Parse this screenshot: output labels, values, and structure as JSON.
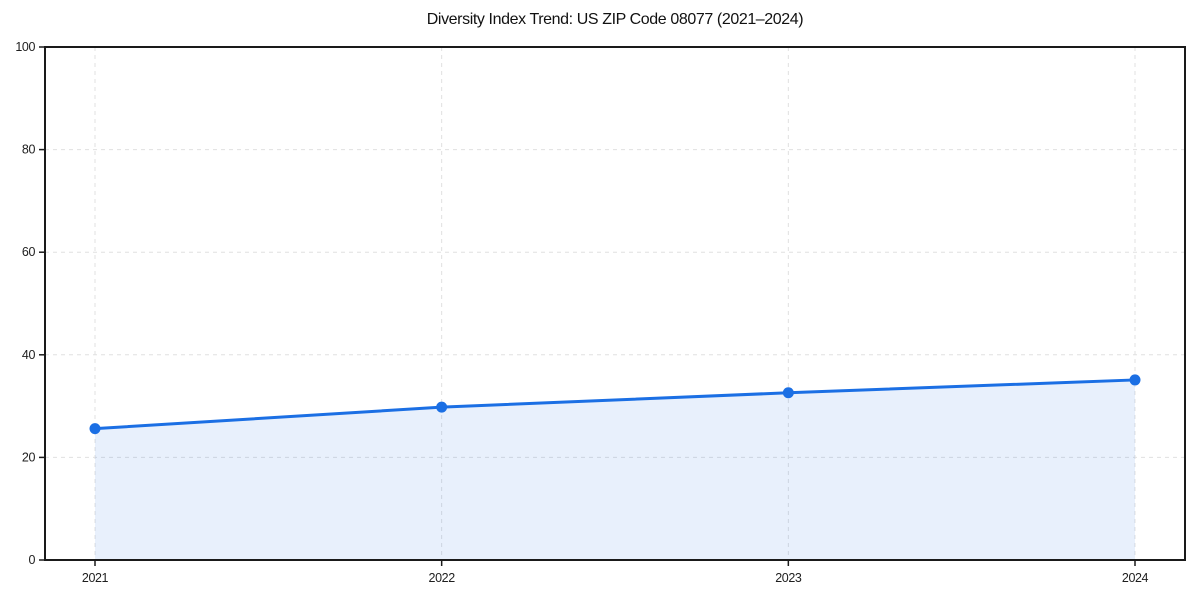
{
  "title": "Diversity Index Trend: US ZIP Code 08077 (2021–2024)",
  "chart_data": {
    "type": "area",
    "title": "Diversity Index Trend: US ZIP Code 08077 (2021–2024)",
    "categories": [
      "2021",
      "2022",
      "2023",
      "2024"
    ],
    "series": [
      {
        "name": "Diversity Index",
        "values": [
          25.6,
          29.8,
          32.6,
          35.1
        ]
      }
    ],
    "xlabel": "",
    "ylabel": "",
    "ylim": [
      0,
      100
    ],
    "yticks": [
      0,
      20,
      40,
      60,
      80,
      100
    ],
    "grid": true,
    "grid_style": "dashed",
    "legend": false,
    "marker": "circle",
    "colors": {
      "line": "#1b6fe4",
      "marker": "#1b6fe4",
      "fill": "rgba(27,111,228,0.10)",
      "gridline": "#e0e0e0",
      "axis_frame": "#1a1a1a",
      "tick_label": "#1e1e1e",
      "background": "#ffffff"
    }
  }
}
